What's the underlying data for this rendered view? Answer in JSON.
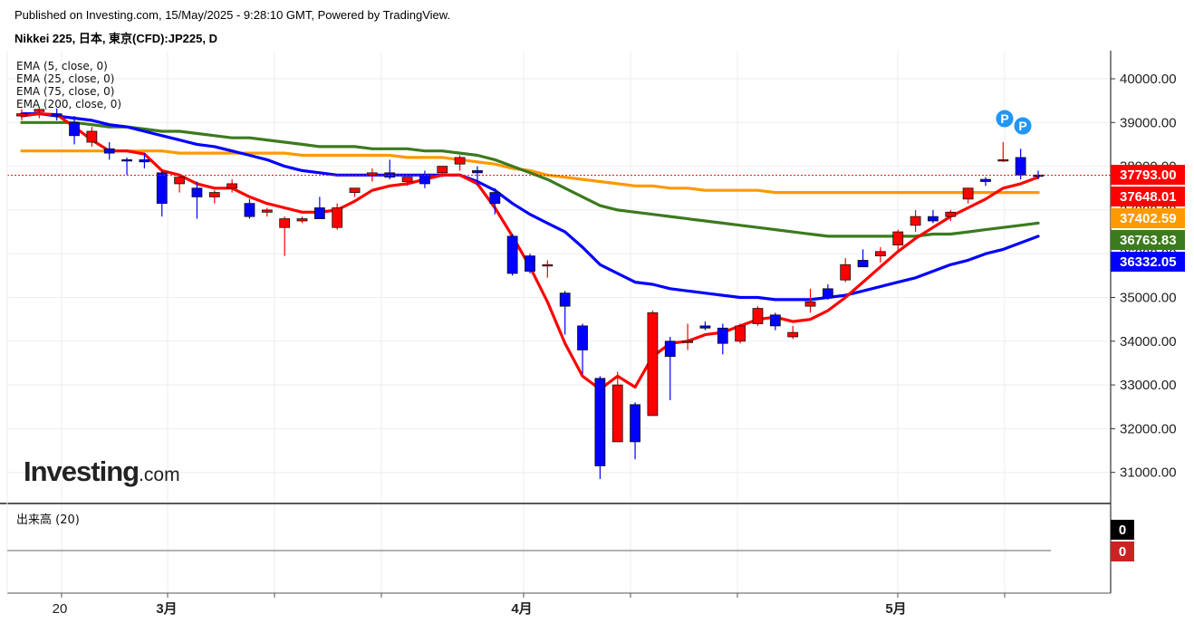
{
  "header": {
    "published": "Published on Investing.com, 15/May/2025 - 9:28:10 GMT, Powered by TradingView.",
    "symbol": "Nikkei 225, 日本, 東京(CFD):JP225, D"
  },
  "logo": {
    "main": "Investing",
    "suffix": ".com"
  },
  "colors": {
    "up": "#ff0000",
    "down": "#0000ff",
    "ema5": "#ff0000",
    "ema25": "#0000ff",
    "ema75": "#3c7a1e",
    "ema200": "#ff9900",
    "last_price": "#ff0000"
  },
  "chart_data": [
    {
      "type": "candlestick",
      "title": "Nikkei 225, 日本, 東京(CFD):JP225, D",
      "x_ticks": [
        "20",
        "3月",
        "4月",
        "5月"
      ],
      "y_ticks": [
        "31000.00",
        "32000.00",
        "33000.00",
        "34000.00",
        "35000.00",
        "36000.00",
        "37000.00",
        "38000.00",
        "39000.00",
        "40000.00"
      ],
      "ylim": [
        30300,
        40600
      ],
      "grid": true,
      "indicators": [
        "EMA (5, close, 0)",
        "EMA (25, close, 0)",
        "EMA (75, close, 0)",
        "EMA (200, close, 0)"
      ],
      "price_tags": [
        {
          "label": "37793.00",
          "color": "#ff0000",
          "value": 37793
        },
        {
          "label": "37648.01",
          "color": "#ff0000",
          "value": 37648
        },
        {
          "label": "37402.59",
          "color": "#ff9900",
          "value": 37403
        },
        {
          "label": "36763.83",
          "color": "#3c7a1e",
          "value": 36764
        },
        {
          "label": "36332.05",
          "color": "#0000ff",
          "value": 36332
        }
      ],
      "markers": [
        "P",
        "P"
      ],
      "candles": [
        {
          "o": 39150,
          "h": 39300,
          "l": 39050,
          "c": 39200
        },
        {
          "o": 39250,
          "h": 39350,
          "l": 39100,
          "c": 39300
        },
        {
          "o": 39200,
          "h": 39320,
          "l": 39050,
          "c": 39150
        },
        {
          "o": 39000,
          "h": 39150,
          "l": 38500,
          "c": 38700
        },
        {
          "o": 38550,
          "h": 38900,
          "l": 38450,
          "c": 38800
        },
        {
          "o": 38400,
          "h": 38550,
          "l": 38150,
          "c": 38300
        },
        {
          "o": 38150,
          "h": 38200,
          "l": 37800,
          "c": 38120
        },
        {
          "o": 38150,
          "h": 38300,
          "l": 37950,
          "c": 38100
        },
        {
          "o": 37850,
          "h": 37900,
          "l": 36850,
          "c": 37150
        },
        {
          "o": 37600,
          "h": 37800,
          "l": 37400,
          "c": 37750
        },
        {
          "o": 37500,
          "h": 37650,
          "l": 36800,
          "c": 37300
        },
        {
          "o": 37300,
          "h": 37450,
          "l": 37150,
          "c": 37400
        },
        {
          "o": 37500,
          "h": 37700,
          "l": 37400,
          "c": 37600
        },
        {
          "o": 37150,
          "h": 37250,
          "l": 36800,
          "c": 36850
        },
        {
          "o": 36950,
          "h": 37050,
          "l": 36850,
          "c": 37000
        },
        {
          "o": 36600,
          "h": 36850,
          "l": 35950,
          "c": 36800
        },
        {
          "o": 36750,
          "h": 36850,
          "l": 36700,
          "c": 36800
        },
        {
          "o": 37050,
          "h": 37300,
          "l": 36800,
          "c": 36800
        },
        {
          "o": 36600,
          "h": 37150,
          "l": 36550,
          "c": 37050
        },
        {
          "o": 37400,
          "h": 37500,
          "l": 37300,
          "c": 37500
        },
        {
          "o": 37800,
          "h": 37950,
          "l": 37650,
          "c": 37850
        },
        {
          "o": 37850,
          "h": 38150,
          "l": 37700,
          "c": 37750
        },
        {
          "o": 37650,
          "h": 37750,
          "l": 37550,
          "c": 37750
        },
        {
          "o": 37800,
          "h": 37900,
          "l": 37500,
          "c": 37600
        },
        {
          "o": 37850,
          "h": 38000,
          "l": 37750,
          "c": 38000
        },
        {
          "o": 38050,
          "h": 38250,
          "l": 37900,
          "c": 38200
        },
        {
          "o": 37900,
          "h": 38000,
          "l": 37550,
          "c": 37850
        },
        {
          "o": 37400,
          "h": 37500,
          "l": 36900,
          "c": 37150
        },
        {
          "o": 36400,
          "h": 36450,
          "l": 35500,
          "c": 35550
        },
        {
          "o": 35950,
          "h": 36000,
          "l": 35550,
          "c": 35600
        },
        {
          "o": 35750,
          "h": 35850,
          "l": 35450,
          "c": 35750
        },
        {
          "o": 35100,
          "h": 35150,
          "l": 34150,
          "c": 34800
        },
        {
          "o": 34350,
          "h": 34400,
          "l": 33250,
          "c": 33800
        },
        {
          "o": 33150,
          "h": 33200,
          "l": 30850,
          "c": 31150
        },
        {
          "o": 31700,
          "h": 33300,
          "l": 31700,
          "c": 33000
        },
        {
          "o": 32550,
          "h": 32600,
          "l": 31300,
          "c": 31700
        },
        {
          "o": 32300,
          "h": 34700,
          "l": 32300,
          "c": 34650
        },
        {
          "o": 34000,
          "h": 34100,
          "l": 32650,
          "c": 33650
        },
        {
          "o": 34000,
          "h": 34400,
          "l": 33800,
          "c": 34000
        },
        {
          "o": 34350,
          "h": 34450,
          "l": 34250,
          "c": 34300
        },
        {
          "o": 34300,
          "h": 34400,
          "l": 33700,
          "c": 33950
        },
        {
          "o": 34000,
          "h": 34400,
          "l": 33950,
          "c": 34350
        },
        {
          "o": 34400,
          "h": 34800,
          "l": 34350,
          "c": 34750
        },
        {
          "o": 34600,
          "h": 34650,
          "l": 34250,
          "c": 34350
        },
        {
          "o": 34100,
          "h": 34350,
          "l": 34050,
          "c": 34200
        },
        {
          "o": 34800,
          "h": 35200,
          "l": 34650,
          "c": 34900
        },
        {
          "o": 35200,
          "h": 35300,
          "l": 34950,
          "c": 35000
        },
        {
          "o": 35400,
          "h": 35900,
          "l": 35350,
          "c": 35750
        },
        {
          "o": 35850,
          "h": 36100,
          "l": 35750,
          "c": 35700
        },
        {
          "o": 35950,
          "h": 36150,
          "l": 35800,
          "c": 36050
        },
        {
          "o": 36200,
          "h": 36550,
          "l": 36050,
          "c": 36500
        },
        {
          "o": 36650,
          "h": 37000,
          "l": 36500,
          "c": 36850
        },
        {
          "o": 36850,
          "h": 37000,
          "l": 36700,
          "c": 36750
        },
        {
          "o": 36850,
          "h": 37000,
          "l": 36750,
          "c": 36950
        },
        {
          "o": 37250,
          "h": 37500,
          "l": 37150,
          "c": 37500
        },
        {
          "o": 37700,
          "h": 37750,
          "l": 37550,
          "c": 37650
        },
        {
          "o": 38150,
          "h": 38550,
          "l": 38100,
          "c": 38150
        },
        {
          "o": 38200,
          "h": 38400,
          "l": 37700,
          "c": 37800
        },
        {
          "o": 37800,
          "h": 37900,
          "l": 37700,
          "c": 37793
        }
      ],
      "series": [
        {
          "name": "EMA (5, close, 0)",
          "color": "#ff0000",
          "values": [
            39150,
            39200,
            39180,
            38900,
            38600,
            38350,
            38350,
            38280,
            37900,
            37800,
            37600,
            37500,
            37500,
            37300,
            37150,
            37050,
            36950,
            36950,
            37000,
            37200,
            37450,
            37550,
            37600,
            37700,
            37800,
            37800,
            37600,
            37050,
            36400,
            35700,
            34900,
            33950,
            33200,
            32900,
            33200,
            32950,
            33650,
            33950,
            34000,
            34150,
            34200,
            34350,
            34500,
            34550,
            34450,
            34500,
            34700,
            35000,
            35350,
            35700,
            36050,
            36350,
            36600,
            36850,
            37050,
            37250,
            37500,
            37600,
            37750
          ]
        },
        {
          "name": "EMA (25, close, 0)",
          "color": "#0000ff",
          "values": [
            39200,
            39200,
            39150,
            39100,
            39050,
            38950,
            38900,
            38800,
            38700,
            38600,
            38500,
            38450,
            38350,
            38250,
            38150,
            38000,
            37900,
            37850,
            37800,
            37800,
            37800,
            37800,
            37800,
            37800,
            37800,
            37800,
            37650,
            37450,
            37150,
            36900,
            36700,
            36500,
            36150,
            35750,
            35550,
            35350,
            35300,
            35200,
            35150,
            35100,
            35050,
            35000,
            35000,
            34950,
            34950,
            34950,
            35000,
            35050,
            35150,
            35250,
            35350,
            35450,
            35600,
            35750,
            35850,
            36000,
            36100,
            36250,
            36400
          ]
        },
        {
          "name": "EMA (75, close, 0)",
          "color": "#3c7a1e",
          "values": [
            39000,
            39000,
            39000,
            39000,
            38950,
            38900,
            38900,
            38850,
            38800,
            38800,
            38750,
            38700,
            38650,
            38650,
            38600,
            38550,
            38500,
            38450,
            38450,
            38450,
            38400,
            38400,
            38400,
            38350,
            38350,
            38300,
            38250,
            38150,
            38000,
            37850,
            37700,
            37500,
            37300,
            37100,
            37000,
            36950,
            36900,
            36850,
            36800,
            36750,
            36700,
            36650,
            36600,
            36550,
            36500,
            36450,
            36400,
            36400,
            36400,
            36400,
            36400,
            36400,
            36450,
            36450,
            36500,
            36550,
            36600,
            36650,
            36700
          ]
        },
        {
          "name": "EMA (200, close, 0)",
          "color": "#ff9900",
          "values": [
            38350,
            38350,
            38350,
            38350,
            38350,
            38350,
            38350,
            38350,
            38350,
            38300,
            38300,
            38300,
            38300,
            38300,
            38300,
            38300,
            38250,
            38250,
            38250,
            38250,
            38250,
            38250,
            38200,
            38200,
            38200,
            38150,
            38100,
            38050,
            37950,
            37900,
            37800,
            37750,
            37700,
            37650,
            37600,
            37550,
            37550,
            37500,
            37500,
            37450,
            37450,
            37450,
            37450,
            37400,
            37400,
            37400,
            37400,
            37400,
            37400,
            37400,
            37400,
            37400,
            37400,
            37400,
            37400,
            37400,
            37400,
            37400,
            37400
          ]
        }
      ]
    },
    {
      "type": "bar",
      "title": "出来高 (20)",
      "values": [
        0
      ],
      "value_tags": [
        {
          "label": "0",
          "color": "#000000"
        },
        {
          "label": "0",
          "color": "#cc2222"
        }
      ]
    }
  ]
}
